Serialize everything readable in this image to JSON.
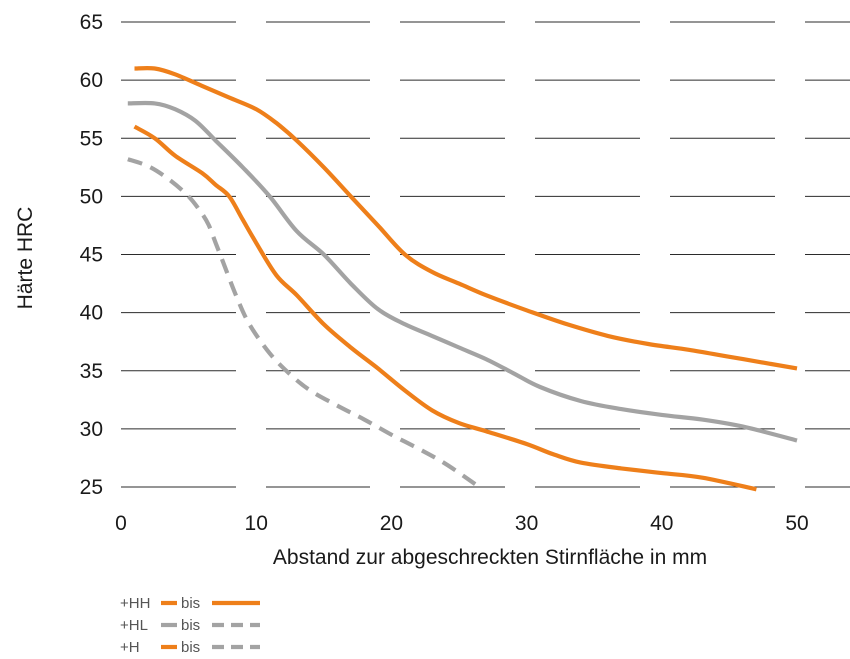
{
  "chart_data": {
    "type": "line",
    "xlabel": "Abstand zur abgeschreckten Stirnfläche in mm",
    "ylabel": "Härte HRC",
    "xlim": [
      0,
      50
    ],
    "ylim": [
      25,
      65
    ],
    "x_ticks": [
      0,
      10,
      20,
      30,
      40,
      50
    ],
    "y_ticks": [
      65,
      60,
      55,
      50,
      45,
      40,
      35,
      30,
      25
    ],
    "grid": "horizontal",
    "colors": {
      "orange": "#ee7f1a",
      "gray": "#a3a3a3",
      "grid": "#2b2b2b"
    },
    "series": [
      {
        "color": "#ee7f1a",
        "style": "solid",
        "x": [
          1,
          2.5,
          4,
          6,
          8,
          10,
          11.5,
          13,
          15,
          17,
          19,
          21,
          23,
          25,
          27,
          30,
          33,
          36,
          39,
          42,
          45,
          48,
          50
        ],
        "y": [
          61,
          61,
          60.5,
          59.5,
          58.5,
          57.5,
          56.3,
          54.8,
          52.5,
          50,
          47.5,
          45,
          43.5,
          42.5,
          41.5,
          40.2,
          39,
          38,
          37.3,
          36.8,
          36.2,
          35.6,
          35.2
        ]
      },
      {
        "color": "#ee7f1a",
        "style": "solid",
        "x": [
          1,
          2.5,
          4,
          6,
          7,
          8,
          9,
          10,
          11.5,
          13,
          15,
          17,
          19,
          21,
          23,
          25,
          27,
          30,
          32,
          34,
          37,
          40,
          43,
          47
        ],
        "y": [
          56,
          55,
          53.5,
          52,
          51,
          50,
          48,
          46,
          43.2,
          41.5,
          39,
          37,
          35.2,
          33.3,
          31.6,
          30.5,
          29.8,
          28.7,
          27.8,
          27.1,
          26.6,
          26.2,
          25.8,
          24.8
        ]
      },
      {
        "color": "#a3a3a3",
        "style": "solid",
        "x": [
          0.5,
          2.5,
          4,
          5.5,
          7,
          9,
          11,
          13,
          15,
          17,
          19,
          21,
          23,
          25,
          27,
          29,
          31,
          34,
          37,
          40,
          43,
          46,
          50
        ],
        "y": [
          58,
          58,
          57.5,
          56.5,
          54.8,
          52.5,
          50,
          47,
          45,
          42.5,
          40.3,
          39,
          38,
          37,
          36,
          34.8,
          33.6,
          32.4,
          31.7,
          31.2,
          30.8,
          30.2,
          29
        ]
      },
      {
        "color": "#a3a3a3",
        "style": "dashed",
        "x": [
          0.5,
          2,
          3.5,
          5,
          6,
          6.5,
          7,
          7.5,
          8.5,
          9.5,
          11,
          12.5,
          14,
          16,
          18,
          20,
          22,
          24,
          26.5
        ],
        "y": [
          53.2,
          52.6,
          51.5,
          50,
          48.5,
          47.5,
          46,
          44.5,
          41.5,
          39,
          36.5,
          34.7,
          33.3,
          32,
          30.8,
          29.5,
          28.3,
          27,
          25
        ]
      }
    ],
    "legend": [
      {
        "label": "+HH",
        "joiner": "bis",
        "from_color": "#ee7f1a",
        "from_style": "solid",
        "to_color": "#ee7f1a",
        "to_style": "solid"
      },
      {
        "label": "+HL",
        "joiner": "bis",
        "from_color": "#a3a3a3",
        "from_style": "solid",
        "to_color": "#a3a3a3",
        "to_style": "dashed"
      },
      {
        "label": "+H",
        "joiner": "bis",
        "from_color": "#ee7f1a",
        "from_style": "solid",
        "to_color": "#a3a3a3",
        "to_style": "dashed"
      }
    ]
  }
}
